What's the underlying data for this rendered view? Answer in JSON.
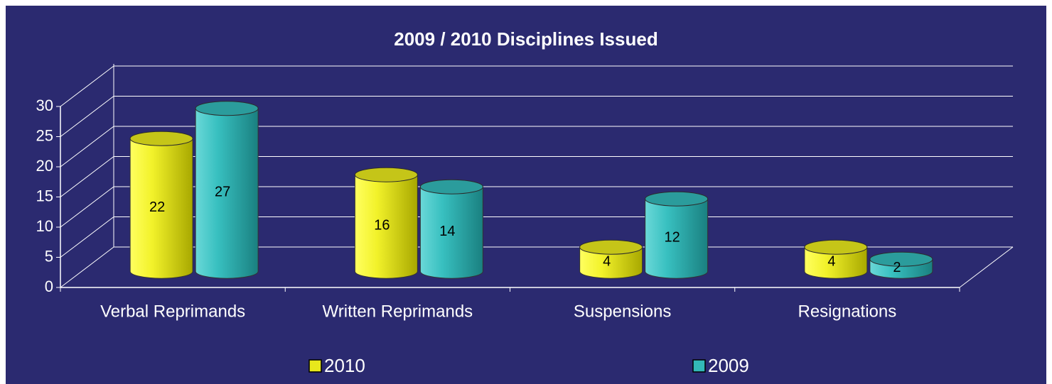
{
  "chart_data": {
    "type": "bar3d",
    "title": "2009 / 2010 Disciplines Issued",
    "categories": [
      "Verbal Reprimands",
      "Written Reprimands",
      "Suspensions",
      "Resignations"
    ],
    "series": [
      {
        "name": "2010",
        "color": "#e8e81c",
        "values": [
          22,
          16,
          4,
          4
        ]
      },
      {
        "name": "2009",
        "color": "#33b8b8",
        "values": [
          27,
          14,
          12,
          2
        ]
      }
    ],
    "ylim": [
      0,
      30
    ],
    "yticks": [
      0,
      5,
      10,
      15,
      20,
      25,
      30
    ],
    "grid": true,
    "legend": "bottom"
  }
}
